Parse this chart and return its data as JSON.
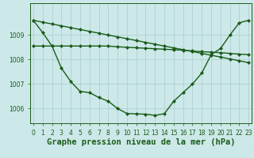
{
  "title": "Graphe pression niveau de la mer (hPa)",
  "hours": [
    0,
    1,
    2,
    3,
    4,
    5,
    6,
    7,
    8,
    9,
    10,
    11,
    12,
    13,
    14,
    15,
    16,
    17,
    18,
    19,
    20,
    21,
    22,
    23
  ],
  "line1": [
    1009.6,
    1009.1,
    1008.55,
    1007.65,
    1007.1,
    1006.7,
    1006.65,
    1006.45,
    1006.3,
    1006.0,
    1005.8,
    1005.78,
    1005.77,
    1005.72,
    1005.79,
    1006.3,
    1006.65,
    1007.0,
    1007.45,
    1008.2,
    1008.45,
    1009.0,
    1009.5,
    1009.6
  ],
  "line2": [
    1008.55,
    1008.55,
    1008.55,
    1008.55,
    1008.55,
    1008.55,
    1008.55,
    1008.55,
    1008.55,
    1008.52,
    1008.5,
    1008.48,
    1008.46,
    1008.44,
    1008.42,
    1008.4,
    1008.38,
    1008.35,
    1008.32,
    1008.3,
    1008.28,
    1008.25,
    1008.22,
    1008.2
  ],
  "line3": [
    1009.6,
    1009.525,
    1009.45,
    1009.375,
    1009.3,
    1009.225,
    1009.15,
    1009.075,
    1009.0,
    1008.925,
    1008.85,
    1008.775,
    1008.7,
    1008.625,
    1008.55,
    1008.475,
    1008.4,
    1008.325,
    1008.25,
    1008.175,
    1008.1,
    1008.025,
    1007.95,
    1007.87
  ],
  "line_color": "#1a5c1a",
  "bg_color": "#cce8e8",
  "grid_color": "#aacccc",
  "ylim": [
    1005.4,
    1010.3
  ],
  "yticks": [
    1006,
    1007,
    1008,
    1009
  ],
  "xtick_labels": [
    "0",
    "1",
    "2",
    "3",
    "4",
    "5",
    "6",
    "7",
    "8",
    "9",
    "10",
    "11",
    "12",
    "13",
    "14",
    "15",
    "16",
    "17",
    "18",
    "19",
    "20",
    "21",
    "22",
    "23"
  ],
  "marker": "D",
  "markersize": 2.0,
  "linewidth": 1.0,
  "title_fontsize": 7.5,
  "tick_fontsize": 5.5
}
